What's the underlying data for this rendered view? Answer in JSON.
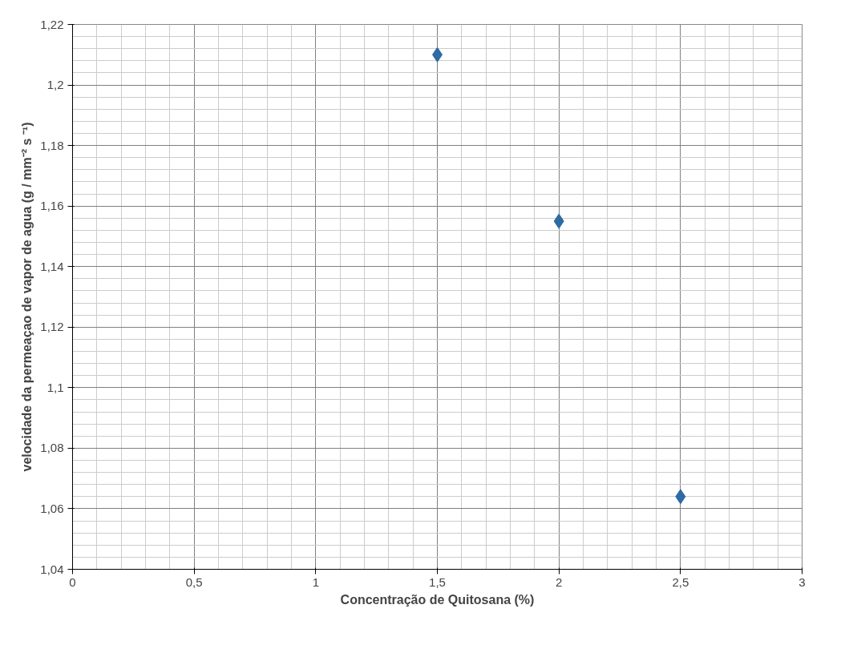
{
  "chart_data": {
    "type": "scatter",
    "xlabel": "Concentração de Quitosana (%)",
    "ylabel": "velocidade da permeaçao de vapor de agua (g / mm⁻² s ⁻¹)",
    "x": [
      1.5,
      2,
      2.5
    ],
    "series": [
      {
        "color": "#2e6aa3",
        "values": [
          1.21,
          1.155,
          1.064
        ]
      }
    ],
    "xlim": [
      0,
      3
    ],
    "xticks": [
      0,
      {
        "value": 0.5,
        "label": "0,5"
      },
      1,
      {
        "value": 1.5,
        "label": "1,5"
      },
      2,
      {
        "value": 2.5,
        "label": "2,5"
      },
      3
    ],
    "ylim": [
      1.04,
      1.22
    ],
    "yticks": [
      {
        "value": 1.04,
        "label": "1,04"
      },
      {
        "value": 1.06,
        "label": "1,06"
      },
      {
        "value": 1.08,
        "label": "1,08"
      },
      {
        "value": 1.1,
        "label": "1,1"
      },
      {
        "value": 1.12,
        "label": "1,12"
      },
      {
        "value": 1.14,
        "label": "1,14"
      },
      {
        "value": 1.16,
        "label": "1,16"
      },
      {
        "value": 1.18,
        "label": "1,18"
      },
      {
        "value": 1.2,
        "label": "1,2"
      },
      {
        "value": 1.22,
        "label": "1,22"
      }
    ],
    "grid": true,
    "marker": "diamond"
  }
}
